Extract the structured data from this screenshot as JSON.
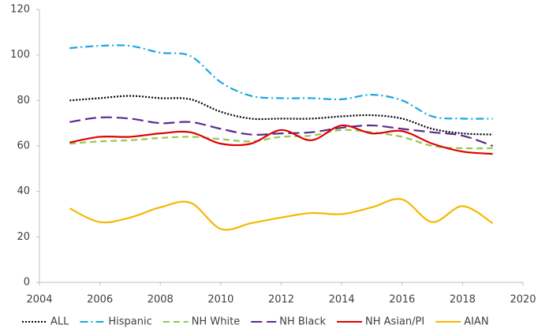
{
  "chart_data": {
    "type": "line",
    "x": [
      2005,
      2006,
      2007,
      2008,
      2009,
      2010,
      2011,
      2012,
      2013,
      2014,
      2015,
      2016,
      2017,
      2018,
      2019
    ],
    "series": [
      {
        "name": "ALL",
        "color": "#000000",
        "dash": "2,2",
        "values": [
          80,
          81,
          82,
          81,
          80.5,
          75,
          72,
          72,
          72,
          73,
          73.5,
          72,
          67.5,
          65.5,
          65
        ]
      },
      {
        "name": "Hispanic",
        "color": "#1aa7e0",
        "dash": "10,4,2,4",
        "values": [
          103,
          104,
          104,
          101,
          99.5,
          88,
          82,
          81,
          81,
          80.5,
          82.5,
          80,
          73,
          72,
          72
        ]
      },
      {
        "name": "NH White",
        "color": "#92c94a",
        "dash": "8,5",
        "values": [
          61,
          62,
          62.5,
          63.5,
          64,
          63,
          62,
          64,
          64.5,
          67,
          66,
          64,
          60,
          59,
          59
        ]
      },
      {
        "name": "NH Black",
        "color": "#5b2a8f",
        "dash": "14,6",
        "values": [
          70.5,
          72.5,
          72,
          70,
          70.5,
          67.5,
          65,
          65.5,
          66,
          68,
          69,
          67.5,
          66,
          64.5,
          60
        ]
      },
      {
        "name": "NH Asian/PI",
        "color": "#e00000",
        "dash": "none",
        "values": [
          61.5,
          64,
          64,
          65.5,
          66,
          61,
          61,
          67,
          62.5,
          69,
          65.5,
          66.5,
          61,
          57.5,
          56.5
        ]
      },
      {
        "name": "AIAN",
        "color": "#f5b800",
        "dash": "none",
        "values": [
          32.5,
          26.5,
          28.5,
          33,
          35,
          23.5,
          26,
          28.5,
          30.5,
          30,
          33,
          36.5,
          26.5,
          33.5,
          26
        ]
      }
    ],
    "xlim": [
      2004,
      2020
    ],
    "xticks": [
      2004,
      2006,
      2008,
      2010,
      2012,
      2014,
      2016,
      2018,
      2020
    ],
    "ylim": [
      0,
      120
    ],
    "yticks": [
      0,
      20,
      40,
      60,
      80,
      100,
      120
    ],
    "grid": false,
    "legend": "bottom"
  }
}
